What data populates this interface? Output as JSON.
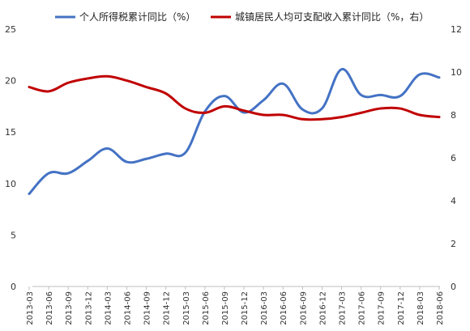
{
  "chart_data": {
    "type": "line",
    "title": "",
    "categories": [
      "2013-03",
      "2013-06",
      "2013-09",
      "2013-12",
      "2014-03",
      "2014-06",
      "2014-09",
      "2014-12",
      "2015-03",
      "2015-06",
      "2015-09",
      "2015-12",
      "2016-03",
      "2016-06",
      "2016-09",
      "2016-12",
      "2017-03",
      "2017-06",
      "2017-09",
      "2017-12",
      "2018-03",
      "2018-06"
    ],
    "series": [
      {
        "name": "个人所得税累计同比（%）",
        "axis": "left",
        "color": "#4472C4",
        "values": [
          9.0,
          11.0,
          11.0,
          12.2,
          13.4,
          12.1,
          12.4,
          12.9,
          13.0,
          17.0,
          18.5,
          16.9,
          18.1,
          19.7,
          17.2,
          17.3,
          21.1,
          18.6,
          18.6,
          18.5,
          20.6,
          20.3
        ]
      },
      {
        "name": "城镇居民人均可支配收入累计同比（%，右）",
        "axis": "right",
        "color": "#C00000",
        "values": [
          9.3,
          9.1,
          9.5,
          9.7,
          9.8,
          9.6,
          9.3,
          9.0,
          8.3,
          8.1,
          8.4,
          8.2,
          8.0,
          8.0,
          7.8,
          7.8,
          7.9,
          8.1,
          8.3,
          8.3,
          8.0,
          7.9
        ]
      }
    ],
    "y_left": {
      "lim": [
        0,
        25
      ],
      "ticks": [
        "0",
        "5",
        "10",
        "15",
        "20",
        "25"
      ]
    },
    "y_right": {
      "lim": [
        0,
        12
      ],
      "ticks": [
        "0",
        "2",
        "4",
        "6",
        "8",
        "10",
        "12"
      ]
    },
    "legend_position": "top",
    "grid": false
  }
}
